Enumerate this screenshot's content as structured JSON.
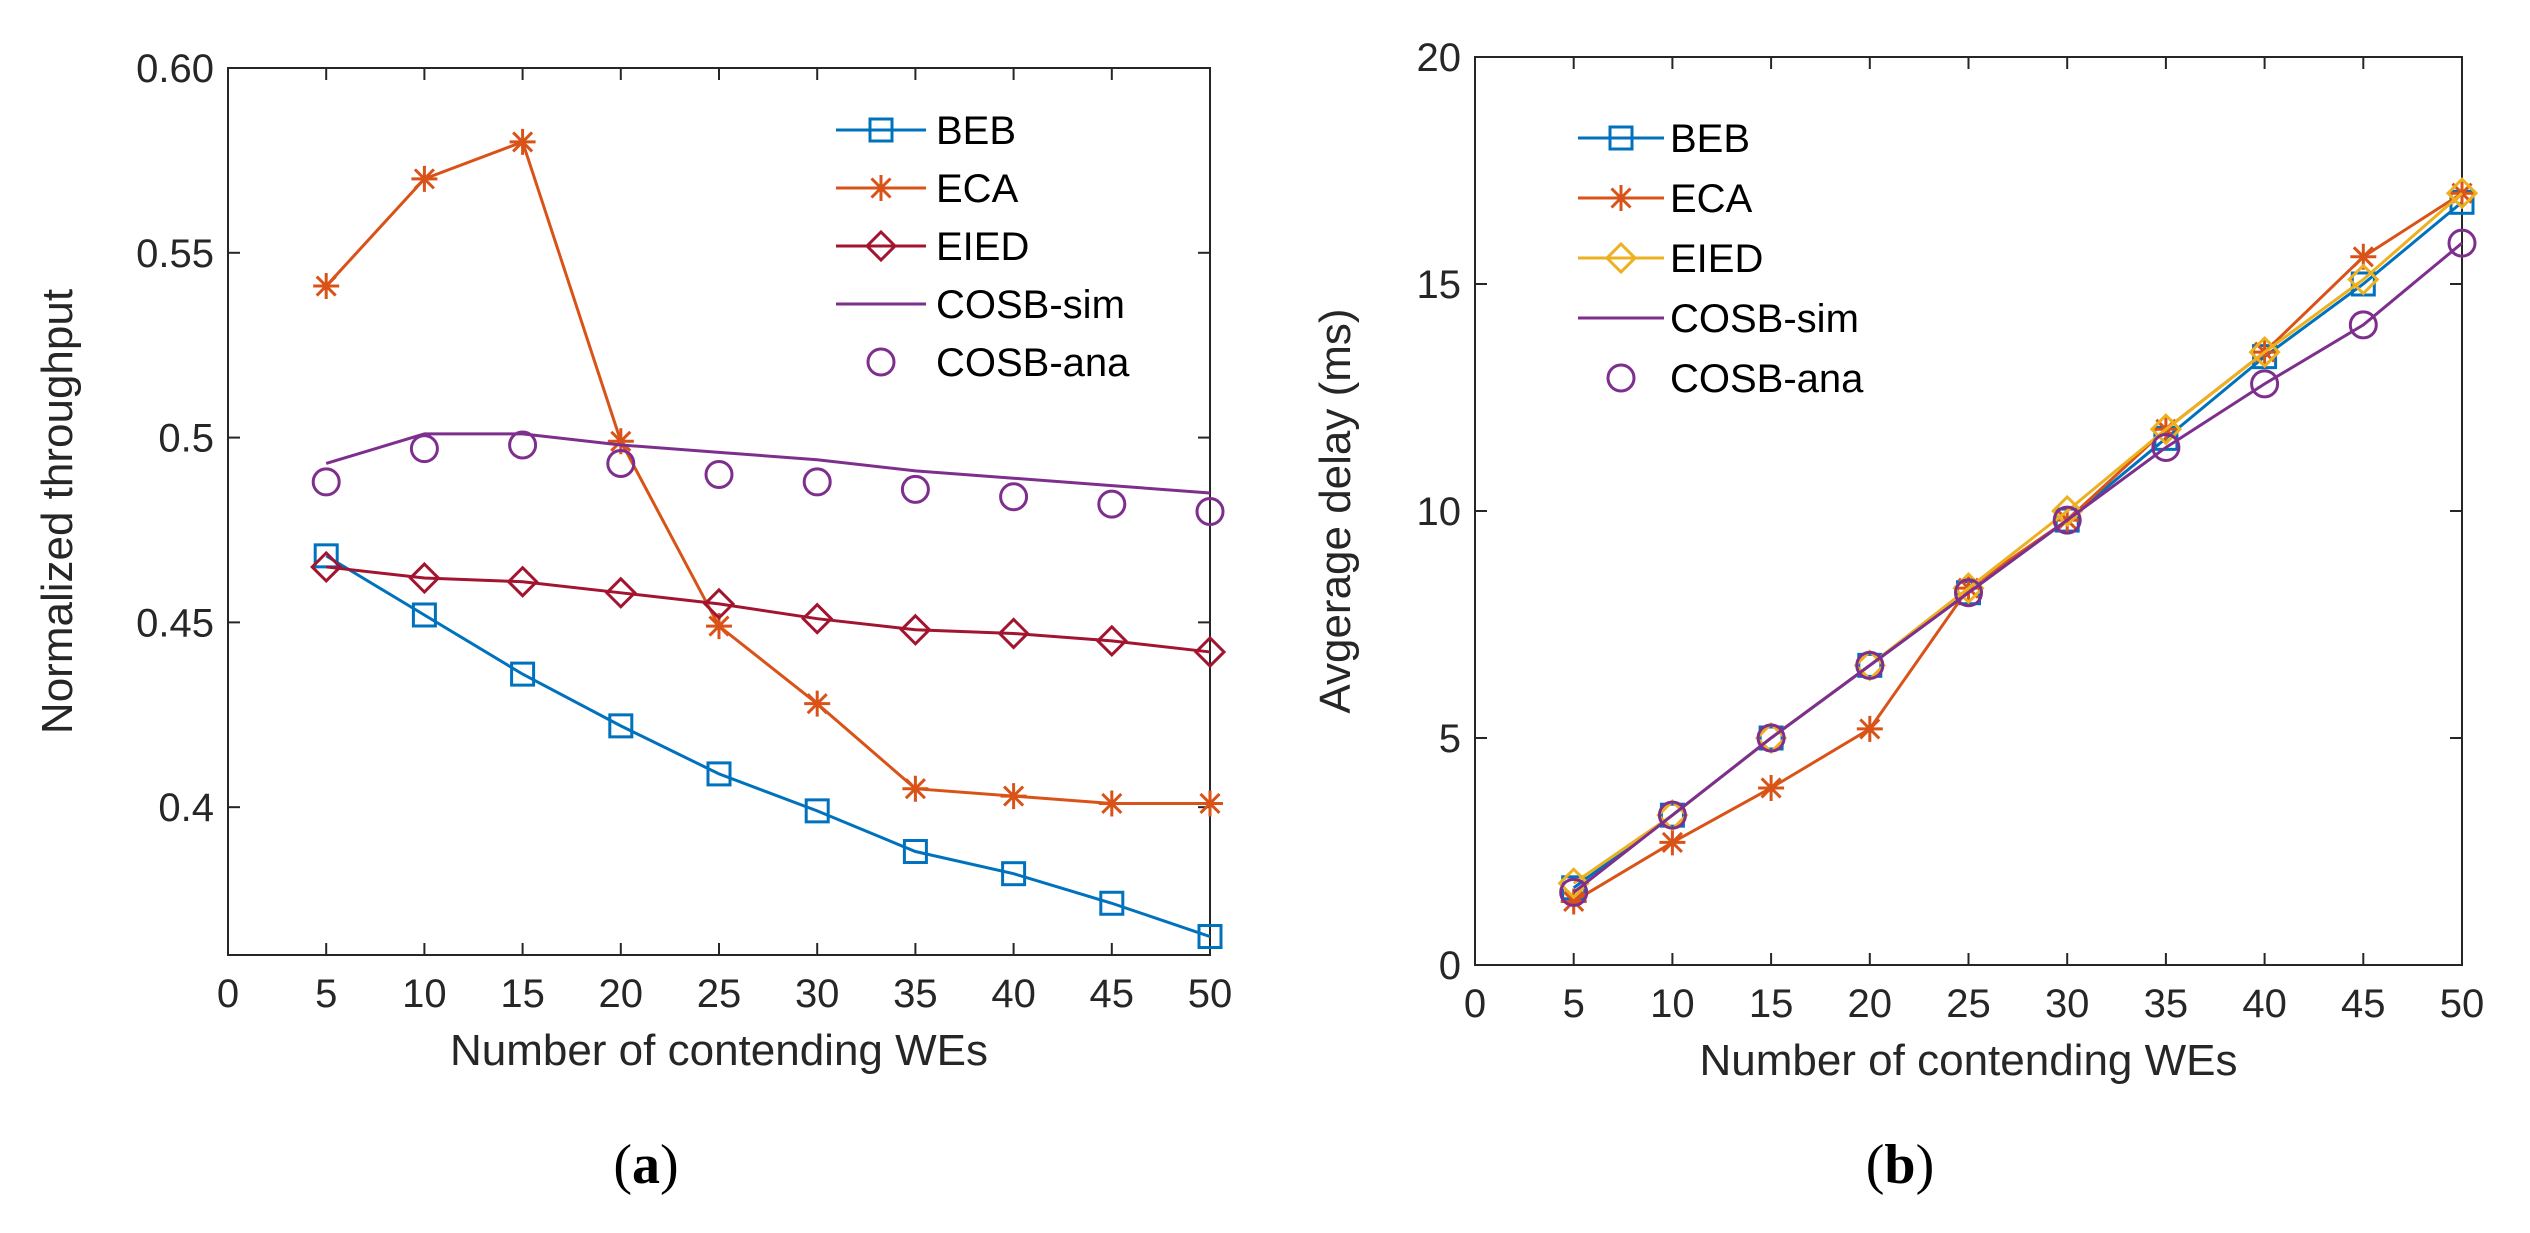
{
  "chart_data": [
    {
      "type": "line",
      "panel_label": "a",
      "xlabel": "Number of contending WEs",
      "ylabel": "Normalized throughput",
      "xlim": [
        0,
        50
      ],
      "ylim": [
        0.36,
        0.6
      ],
      "x_ticks": [
        0,
        5,
        10,
        15,
        20,
        25,
        30,
        35,
        40,
        45,
        50
      ],
      "x_tick_labels": [
        "0",
        "5",
        "10",
        "15",
        "20",
        "25",
        "30",
        "35",
        "40",
        "45",
        "50"
      ],
      "y_ticks": [
        0.4,
        0.45,
        0.5,
        0.55,
        0.6
      ],
      "y_tick_labels": [
        "0.4",
        "0.45",
        "0.5",
        "0.55",
        "0.60"
      ],
      "legend_position": "top-right",
      "series": [
        {
          "name": "BEB",
          "color": "#0072BD",
          "marker": "square",
          "line": true,
          "x": [
            5,
            10,
            15,
            20,
            25,
            30,
            35,
            40,
            45,
            50
          ],
          "values": [
            0.468,
            0.452,
            0.436,
            0.422,
            0.409,
            0.399,
            0.388,
            0.382,
            0.374,
            0.365
          ]
        },
        {
          "name": "ECA",
          "color": "#D95319",
          "marker": "star",
          "line": true,
          "x": [
            5,
            10,
            15,
            20,
            25,
            30,
            35,
            40,
            45,
            50
          ],
          "values": [
            0.541,
            0.57,
            0.58,
            0.499,
            0.449,
            0.428,
            0.405,
            0.403,
            0.401,
            0.401
          ]
        },
        {
          "name": "EIED",
          "color": "#A2142F",
          "marker": "diamond",
          "line": true,
          "x": [
            5,
            10,
            15,
            20,
            25,
            30,
            35,
            40,
            45,
            50
          ],
          "values": [
            0.465,
            0.462,
            0.461,
            0.458,
            0.455,
            0.451,
            0.448,
            0.447,
            0.445,
            0.442
          ]
        },
        {
          "name": "COSB-sim",
          "color": "#7E2F8E",
          "marker": "none",
          "line": true,
          "x": [
            5,
            10,
            15,
            20,
            25,
            30,
            35,
            40,
            45,
            50
          ],
          "values": [
            0.493,
            0.501,
            0.501,
            0.498,
            0.496,
            0.494,
            0.491,
            0.489,
            0.487,
            0.485
          ]
        },
        {
          "name": "COSB-ana",
          "color": "#7E2F8E",
          "marker": "circle",
          "line": false,
          "x": [
            5,
            10,
            15,
            20,
            25,
            30,
            35,
            40,
            45,
            50
          ],
          "values": [
            0.488,
            0.497,
            0.498,
            0.493,
            0.49,
            0.488,
            0.486,
            0.484,
            0.482,
            0.48
          ]
        }
      ]
    },
    {
      "type": "line",
      "panel_label": "b",
      "xlabel": "Number of contending WEs",
      "ylabel": "Avgerage delay (ms)",
      "xlim": [
        0,
        50
      ],
      "ylim": [
        0,
        20
      ],
      "x_ticks": [
        0,
        5,
        10,
        15,
        20,
        25,
        30,
        35,
        40,
        45,
        50
      ],
      "x_tick_labels": [
        "0",
        "5",
        "10",
        "15",
        "20",
        "25",
        "30",
        "35",
        "40",
        "45",
        "50"
      ],
      "y_ticks": [
        0,
        5,
        10,
        15,
        20
      ],
      "y_tick_labels": [
        "0",
        "5",
        "10",
        "15",
        "20"
      ],
      "legend_position": "top-left",
      "series": [
        {
          "name": "BEB",
          "color": "#0072BD",
          "marker": "square",
          "line": true,
          "x": [
            5,
            10,
            15,
            20,
            25,
            30,
            35,
            40,
            45,
            50
          ],
          "values": [
            1.7,
            3.3,
            5.0,
            6.6,
            8.2,
            9.8,
            11.6,
            13.4,
            15.0,
            16.8
          ]
        },
        {
          "name": "ECA",
          "color": "#D95319",
          "marker": "star",
          "line": true,
          "x": [
            5,
            10,
            15,
            20,
            25,
            30,
            35,
            40,
            45,
            50
          ],
          "values": [
            1.4,
            2.7,
            3.9,
            5.2,
            8.3,
            9.8,
            11.8,
            13.5,
            15.6,
            17.0
          ]
        },
        {
          "name": "EIED",
          "color": "#EDB120",
          "marker": "diamond",
          "line": true,
          "x": [
            5,
            10,
            15,
            20,
            25,
            30,
            35,
            40,
            45,
            50
          ],
          "values": [
            1.8,
            3.3,
            5.0,
            6.6,
            8.3,
            10.0,
            11.8,
            13.5,
            15.1,
            17.0
          ]
        },
        {
          "name": "COSB-sim",
          "color": "#7E2F8E",
          "marker": "none",
          "line": true,
          "x": [
            5,
            10,
            15,
            20,
            25,
            30,
            35,
            40,
            45,
            50
          ],
          "values": [
            1.6,
            3.3,
            5.0,
            6.6,
            8.2,
            9.8,
            11.4,
            12.8,
            14.1,
            15.9
          ]
        },
        {
          "name": "COSB-ana",
          "color": "#7E2F8E",
          "marker": "circle",
          "line": false,
          "x": [
            5,
            10,
            15,
            20,
            25,
            30,
            35,
            40,
            45,
            50
          ],
          "values": [
            1.6,
            3.3,
            5.0,
            6.6,
            8.2,
            9.8,
            11.4,
            12.8,
            14.1,
            15.9
          ]
        }
      ]
    }
  ]
}
